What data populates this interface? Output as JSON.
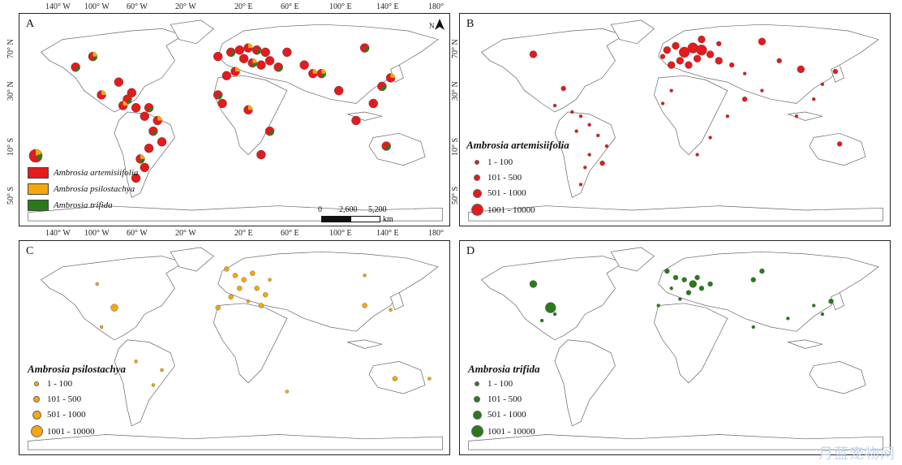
{
  "panels": {
    "A": {
      "label": "A"
    },
    "B": {
      "label": "B",
      "legend_title": "Ambrosia artemisiifolia",
      "color": "#e41a1c"
    },
    "C": {
      "label": "C",
      "legend_title": "Ambrosia psilostachya",
      "color": "#f5a70f"
    },
    "D": {
      "label": "D",
      "legend_title": "Ambrosia trifida",
      "color": "#2a7a1a"
    }
  },
  "longitude_labels": [
    "140° W",
    "100° W",
    "60° W",
    "20° W",
    "20° E",
    "60° E",
    "100° E",
    "140° E",
    "180°"
  ],
  "latitude_labels": [
    "70° N",
    "30° N",
    "10° S",
    "50° S"
  ],
  "species_legend": [
    {
      "name": "Ambrosia artemisiifolia",
      "color": "#e41a1c"
    },
    {
      "name": "Ambrosia psilostachya",
      "color": "#f5a70f"
    },
    {
      "name": "Ambrosia trifida",
      "color": "#2a7a1a"
    }
  ],
  "size_classes": [
    "1 - 100",
    "101 - 500",
    "501 - 1000",
    "1001 - 10000"
  ],
  "scale": {
    "ticks": [
      "0",
      "2,600",
      "5,200"
    ],
    "unit": "km"
  },
  "north_arrow": "N",
  "watermark": "月蓝宠物网"
}
